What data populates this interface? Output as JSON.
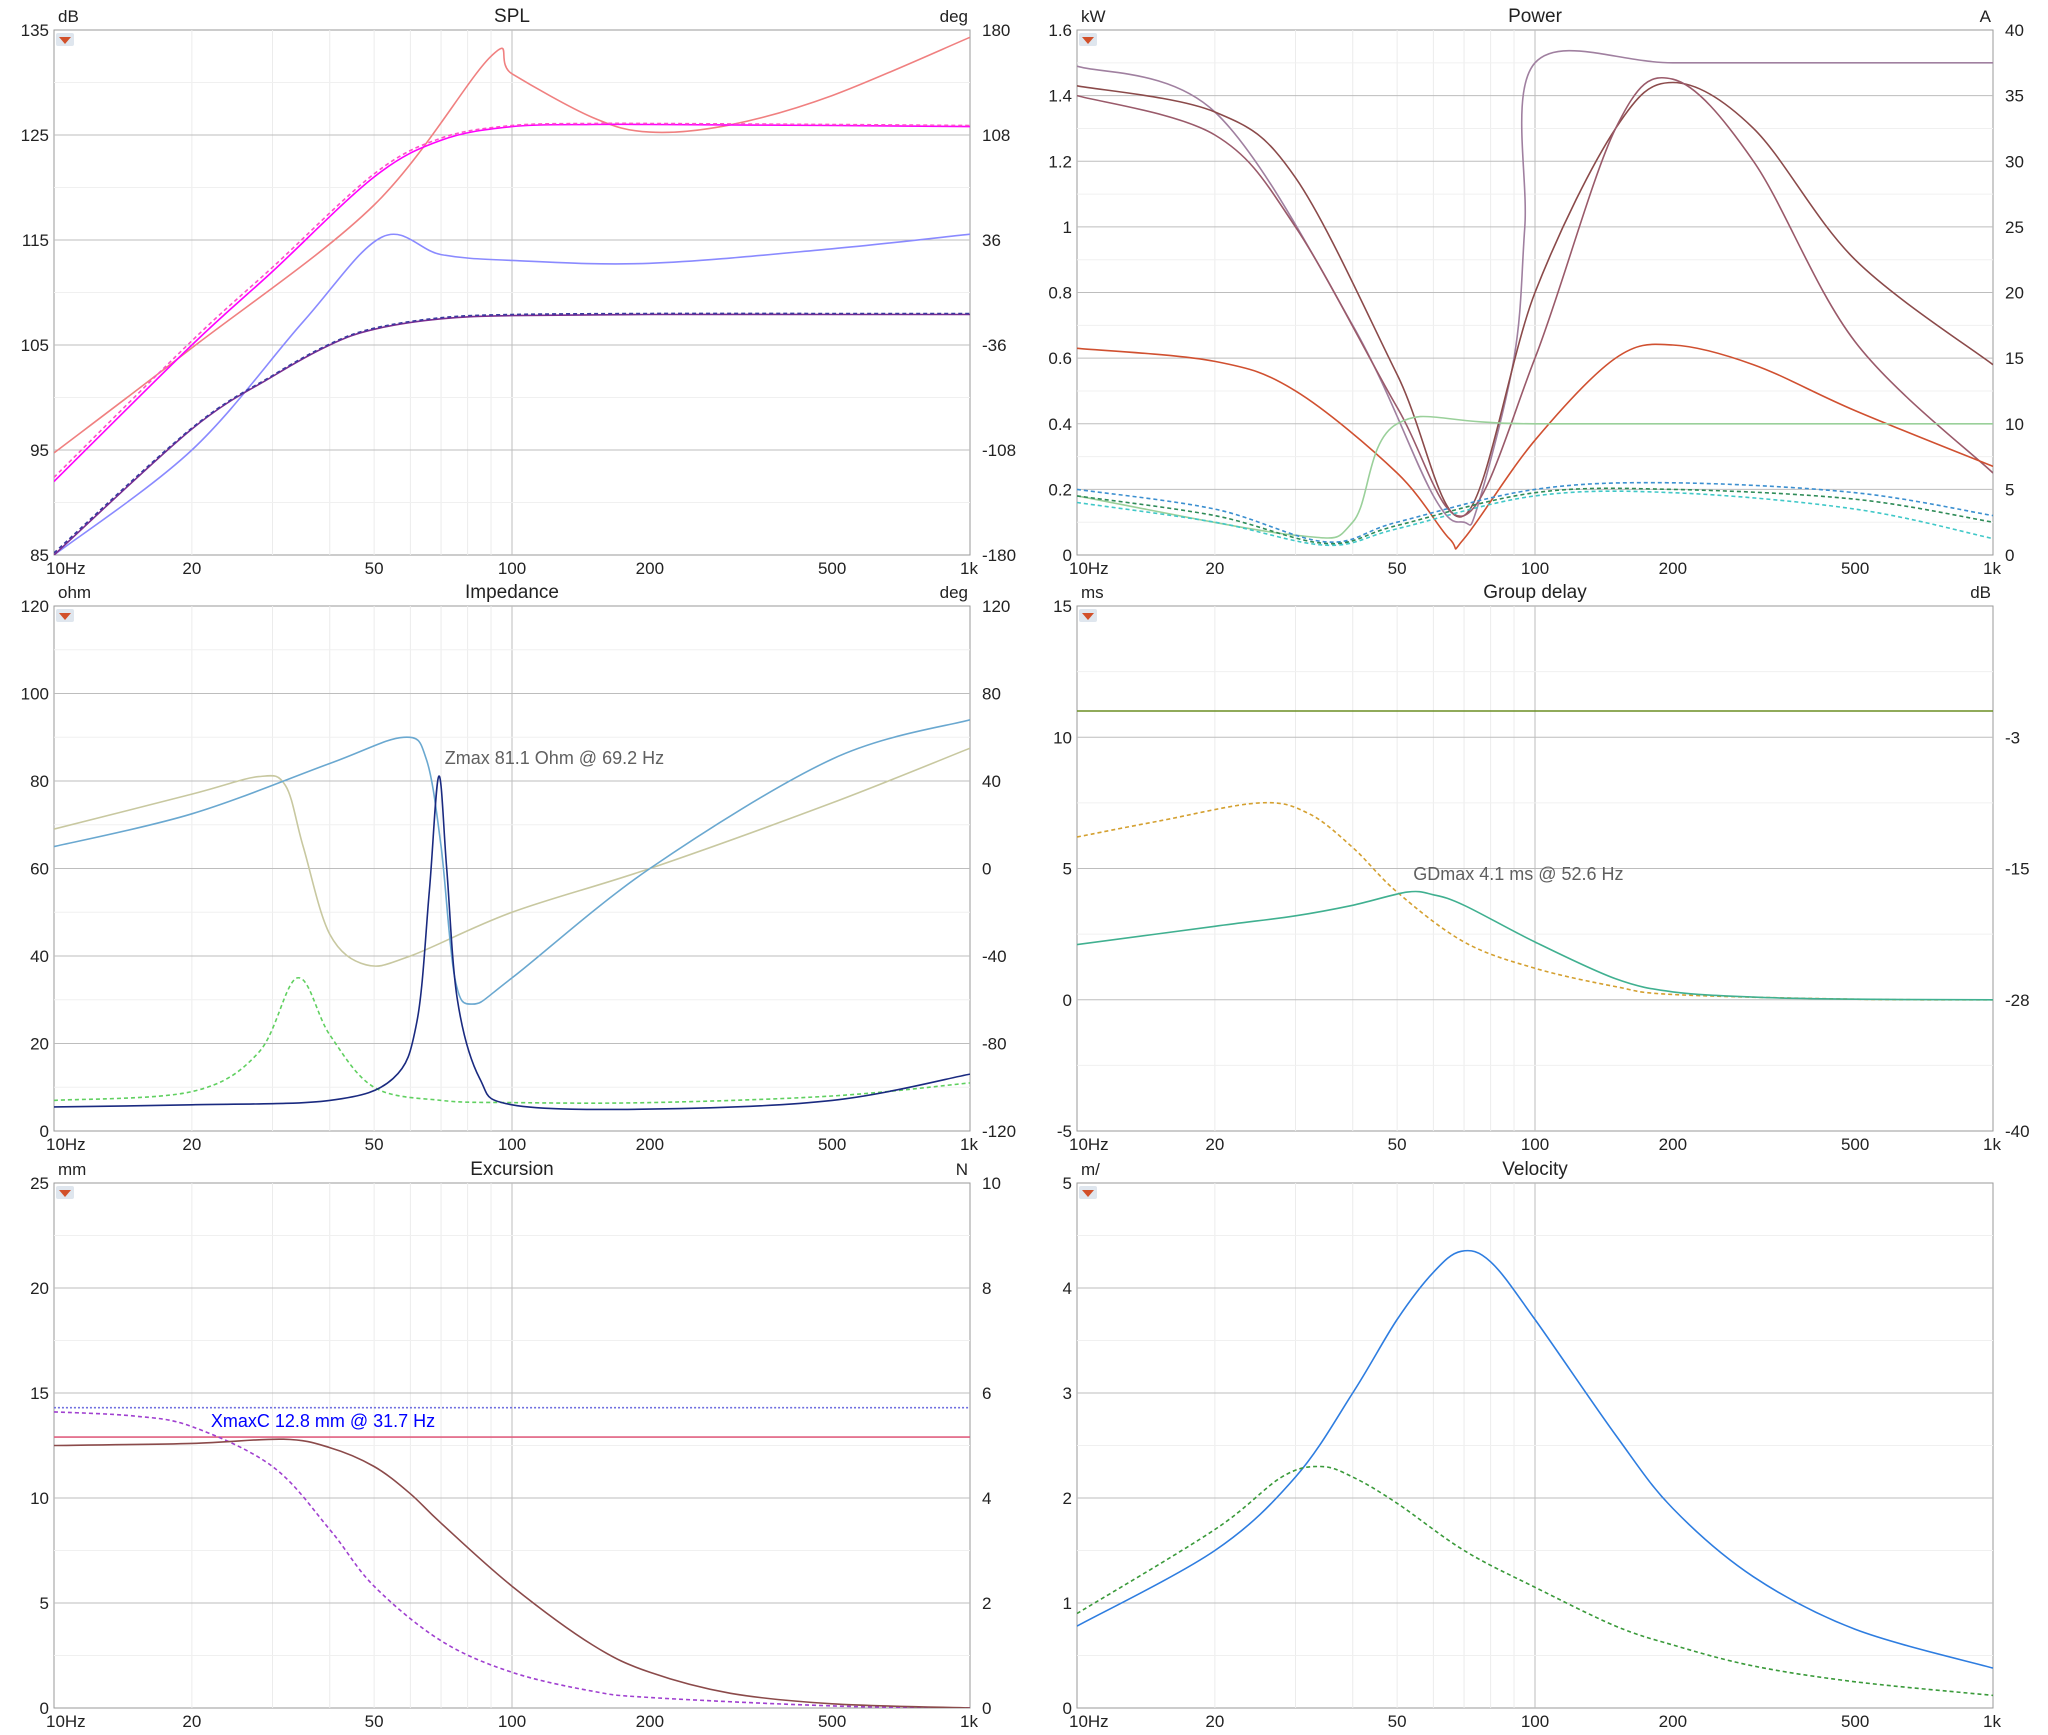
{
  "chart_data": [
    {
      "type": "line",
      "title": "SPL",
      "yunit_left": "dB",
      "yunit_right": "deg",
      "x_scale": "log",
      "xlim": [
        10,
        1000
      ],
      "xticks": [
        "10Hz",
        "20",
        "50",
        "100",
        "200",
        "500",
        "1k"
      ],
      "ylim_left": [
        85,
        135
      ],
      "yticks_left": [
        "135",
        "125",
        "115",
        "105",
        "95",
        "85"
      ],
      "ylim_right": [
        -180,
        180
      ],
      "yticks_right": [
        "180",
        "108",
        "36",
        "-36",
        "-108",
        "-180"
      ],
      "grid": true,
      "annotations": [],
      "series": [
        {
          "color": "#f08080",
          "dash": "",
          "axis": "right",
          "x": [
            10,
            20,
            50,
            90,
            100,
            150,
            200,
            300,
            500,
            1000
          ],
          "y": [
            -110,
            -38,
            60,
            162,
            150,
            120,
            110,
            115,
            135,
            175
          ]
        },
        {
          "color": "#ff00ff",
          "dash": "",
          "axis": "left",
          "x": [
            10,
            20,
            30,
            50,
            70,
            100,
            150,
            200,
            500,
            1000
          ],
          "y": [
            92,
            105,
            112,
            121,
            124.5,
            125.8,
            126,
            126,
            125.9,
            125.8
          ]
        },
        {
          "color": "#ff4fc8",
          "dash": "4,3",
          "axis": "left",
          "x": [
            10,
            20,
            30,
            50,
            70,
            100,
            150,
            200,
            500,
            1000
          ],
          "y": [
            92.4,
            105.4,
            112.4,
            121.3,
            124.7,
            125.9,
            126.1,
            126.1,
            126,
            125.9
          ]
        },
        {
          "color": "#8a8aff",
          "dash": "",
          "axis": "right",
          "x": [
            10,
            20,
            35,
            52,
            70,
            100,
            200,
            500,
            1000
          ],
          "y": [
            -180,
            -108,
            -20,
            38,
            26,
            22,
            20,
            30,
            40
          ]
        },
        {
          "color": "#7a2c90",
          "dash": "",
          "axis": "left",
          "x": [
            10,
            20,
            30,
            40,
            50,
            70,
            100,
            200,
            500,
            1000
          ],
          "y": [
            85,
            97,
            102,
            105,
            106.5,
            107.5,
            107.8,
            107.9,
            107.9,
            107.9
          ]
        },
        {
          "color": "#3a3aa0",
          "dash": "4,3",
          "axis": "left",
          "x": [
            10,
            20,
            30,
            40,
            50,
            70,
            100,
            200,
            500,
            1000
          ],
          "y": [
            85.2,
            97.1,
            102.1,
            105.1,
            106.6,
            107.6,
            107.9,
            108,
            108,
            108
          ]
        }
      ]
    },
    {
      "type": "line",
      "title": "Power",
      "yunit_left": "kW",
      "yunit_right": "A",
      "x_scale": "log",
      "xlim": [
        10,
        1000
      ],
      "xticks": [
        "10Hz",
        "20",
        "50",
        "100",
        "200",
        "500",
        "1k"
      ],
      "ylim_left": [
        0,
        1.6
      ],
      "yticks_left": [
        "1.6",
        "1.4",
        "1.2",
        "1",
        "0.8",
        "0.6",
        "0.4",
        "0.2",
        "0"
      ],
      "ylim_right": [
        0,
        40
      ],
      "yticks_right": [
        "40",
        "35",
        "30",
        "25",
        "20",
        "15",
        "10",
        "5",
        "0"
      ],
      "grid": true,
      "annotations": [],
      "series": [
        {
          "color": "#a080a0",
          "dash": "",
          "axis": "left",
          "x": [
            10,
            20,
            40,
            60,
            70,
            75,
            90,
            95,
            100,
            200,
            500,
            1000
          ],
          "y": [
            1.49,
            1.35,
            0.7,
            0.18,
            0.1,
            0.15,
            0.6,
            1.0,
            1.5,
            1.5,
            1.5,
            1.5
          ]
        },
        {
          "color": "#8b4a4a",
          "dash": "",
          "axis": "left",
          "x": [
            10,
            20,
            30,
            50,
            70,
            100,
            150,
            200,
            300,
            500,
            1000
          ],
          "y": [
            1.43,
            1.35,
            1.15,
            0.55,
            0.12,
            0.8,
            1.3,
            1.44,
            1.3,
            0.9,
            0.58
          ]
        },
        {
          "color": "#9a5a6a",
          "dash": "",
          "axis": "left",
          "x": [
            10,
            20,
            30,
            50,
            70,
            100,
            150,
            200,
            300,
            500,
            1000
          ],
          "y": [
            1.4,
            1.28,
            1.0,
            0.45,
            0.12,
            0.6,
            1.3,
            1.45,
            1.2,
            0.65,
            0.25
          ]
        },
        {
          "color": "#d05030",
          "dash": "",
          "axis": "left",
          "x": [
            10,
            20,
            30,
            50,
            65,
            70,
            100,
            150,
            200,
            300,
            500,
            1000
          ],
          "y": [
            0.63,
            0.59,
            0.5,
            0.25,
            0.05,
            0.05,
            0.35,
            0.6,
            0.64,
            0.58,
            0.44,
            0.27
          ]
        },
        {
          "color": "#9ad09a",
          "dash": "",
          "axis": "right",
          "x": [
            10,
            30,
            40,
            50,
            100,
            1000
          ],
          "y": [
            4.5,
            1.5,
            2.5,
            10,
            10,
            10
          ]
        },
        {
          "color": "#3b8fd0",
          "dash": "4,3",
          "axis": "left",
          "x": [
            10,
            20,
            35,
            50,
            100,
            200,
            500,
            1000
          ],
          "y": [
            0.2,
            0.14,
            0.04,
            0.1,
            0.2,
            0.22,
            0.19,
            0.12
          ]
        },
        {
          "color": "#2e8b57",
          "dash": "4,3",
          "axis": "left",
          "x": [
            10,
            20,
            35,
            50,
            100,
            200,
            500,
            1000
          ],
          "y": [
            0.18,
            0.12,
            0.035,
            0.09,
            0.19,
            0.2,
            0.17,
            0.1
          ]
        },
        {
          "color": "#40c8c8",
          "dash": "4,3",
          "axis": "left",
          "x": [
            10,
            20,
            35,
            50,
            100,
            200,
            500,
            1000
          ],
          "y": [
            0.16,
            0.1,
            0.03,
            0.08,
            0.18,
            0.19,
            0.14,
            0.05
          ]
        }
      ]
    },
    {
      "type": "line",
      "title": "Impedance",
      "yunit_left": "ohm",
      "yunit_right": "deg",
      "x_scale": "log",
      "xlim": [
        10,
        1000
      ],
      "xticks": [
        "10Hz",
        "20",
        "50",
        "100",
        "200",
        "500",
        "1k"
      ],
      "ylim_left": [
        0,
        120
      ],
      "yticks_left": [
        "120",
        "100",
        "80",
        "60",
        "40",
        "20",
        "0"
      ],
      "ylim_right": [
        -120,
        120
      ],
      "yticks_right": [
        "120",
        "80",
        "40",
        "0",
        "-40",
        "-80",
        "-120"
      ],
      "grid": true,
      "annotations": [
        {
          "text": "Zmax 81.1 Ohm @ 69.2 Hz",
          "x": 69.2,
          "y": 81.1,
          "color": "#606060"
        }
      ],
      "series": [
        {
          "color": "#c8c8a0",
          "dash": "",
          "axis": "right",
          "x": [
            10,
            20,
            28,
            32,
            35,
            40,
            48,
            60,
            100,
            200,
            500,
            1000
          ],
          "y": [
            18,
            34,
            42,
            38,
            10,
            -30,
            -44,
            -40,
            -20,
            0,
            30,
            55
          ]
        },
        {
          "color": "#6aa8d0",
          "dash": "",
          "axis": "right",
          "x": [
            10,
            20,
            40,
            58,
            65,
            70,
            75,
            82,
            100,
            200,
            500,
            1000
          ],
          "y": [
            10,
            25,
            48,
            60,
            50,
            10,
            -50,
            -62,
            -50,
            0,
            50,
            68
          ]
        },
        {
          "color": "#60d060",
          "dash": "4,3",
          "axis": "left",
          "x": [
            10,
            20,
            28,
            34,
            40,
            50,
            70,
            100,
            200,
            500,
            1000
          ],
          "y": [
            7,
            9,
            18,
            35,
            22,
            10,
            7,
            6.5,
            6.5,
            8,
            11
          ]
        },
        {
          "color": "#1a2a80",
          "dash": "",
          "axis": "left",
          "x": [
            10,
            20,
            40,
            55,
            62,
            66,
            69.2,
            72,
            76,
            85,
            100,
            200,
            500,
            1000
          ],
          "y": [
            5.5,
            6,
            7,
            12,
            25,
            55,
            81.1,
            60,
            30,
            12,
            6,
            5,
            7,
            13
          ]
        }
      ]
    },
    {
      "type": "line",
      "title": "Group delay",
      "yunit_left": "ms",
      "yunit_right": "dB",
      "x_scale": "log",
      "xlim": [
        10,
        1000
      ],
      "xticks": [
        "10Hz",
        "20",
        "50",
        "100",
        "200",
        "500",
        "1k"
      ],
      "ylim_left": [
        -5,
        15
      ],
      "yticks_left": [
        "15",
        "10",
        "5",
        "0",
        "-5"
      ],
      "ylim_right": [
        -40,
        10
      ],
      "yticks_right": [
        "-3",
        "-15",
        "-28",
        "-40"
      ],
      "grid": true,
      "annotations": [
        {
          "text": "GDmax 4.1 ms  @ 52.6 Hz",
          "x": 52.6,
          "y": 4.1,
          "color": "#606060"
        }
      ],
      "series": [
        {
          "color": "#6b8e23",
          "dash": "",
          "axis": "left",
          "x": [
            10,
            1000
          ],
          "y": [
            11,
            11
          ]
        },
        {
          "color": "#d4a030",
          "dash": "4,3",
          "axis": "left",
          "x": [
            10,
            15,
            25,
            32,
            40,
            50,
            70,
            100,
            150,
            200,
            500,
            1000
          ],
          "y": [
            6.2,
            6.8,
            7.5,
            7.1,
            5.8,
            4.1,
            2.2,
            1.2,
            0.5,
            0.2,
            0.02,
            0
          ]
        },
        {
          "color": "#40b090",
          "dash": "",
          "axis": "left",
          "x": [
            10,
            20,
            30,
            40,
            52.6,
            60,
            70,
            100,
            150,
            200,
            300,
            500,
            1000
          ],
          "y": [
            2.1,
            2.8,
            3.2,
            3.6,
            4.1,
            4.0,
            3.6,
            2.2,
            0.8,
            0.3,
            0.1,
            0.02,
            0
          ]
        }
      ]
    },
    {
      "type": "line",
      "title": "Excursion",
      "yunit_left": "mm",
      "yunit_right": "N",
      "x_scale": "log",
      "xlim": [
        10,
        1000
      ],
      "xticks": [
        "10Hz",
        "20",
        "50",
        "100",
        "200",
        "500",
        "1k"
      ],
      "ylim_left": [
        0,
        25
      ],
      "yticks_left": [
        "25",
        "20",
        "15",
        "10",
        "5",
        "0"
      ],
      "ylim_right": [
        0,
        10
      ],
      "yticks_right": [
        "10",
        "8",
        "6",
        "4",
        "2",
        "0"
      ],
      "grid": true,
      "annotations": [
        {
          "text": "XmaxC 12.8 mm  @ 31.7 Hz",
          "x": 22,
          "y": 12.8,
          "color": "#0000ff"
        }
      ],
      "series": [
        {
          "color": "#7070e0",
          "dash": "2,2",
          "axis": "left",
          "x": [
            10,
            1000
          ],
          "y": [
            14.3,
            14.3
          ]
        },
        {
          "color": "#e06080",
          "dash": "",
          "axis": "left",
          "x": [
            10,
            1000
          ],
          "y": [
            12.9,
            12.9
          ]
        },
        {
          "color": "#a040d0",
          "dash": "4,3",
          "axis": "left",
          "x": [
            10,
            15,
            20,
            30,
            40,
            50,
            70,
            100,
            150,
            200,
            500,
            1000
          ],
          "y": [
            14.1,
            13.9,
            13.4,
            11.5,
            8.5,
            5.8,
            3.2,
            1.7,
            0.8,
            0.5,
            0.1,
            0
          ]
        },
        {
          "color": "#8b4a4a",
          "dash": "",
          "axis": "left",
          "x": [
            10,
            20,
            31.7,
            40,
            50,
            60,
            70,
            100,
            150,
            200,
            300,
            500,
            1000
          ],
          "y": [
            12.5,
            12.6,
            12.8,
            12.4,
            11.5,
            10.2,
            8.8,
            5.8,
            3.0,
            1.7,
            0.7,
            0.2,
            0
          ]
        }
      ]
    },
    {
      "type": "line",
      "title": "Velocity",
      "yunit_left": "m/",
      "yunit_right": "",
      "x_scale": "log",
      "xlim": [
        10,
        1000
      ],
      "xticks": [
        "10Hz",
        "20",
        "50",
        "100",
        "200",
        "500",
        "1k"
      ],
      "ylim_left": [
        0,
        5
      ],
      "yticks_left": [
        "5",
        "4",
        "3",
        "2",
        "1",
        "0"
      ],
      "ylim_right": null,
      "yticks_right": [],
      "grid": true,
      "annotations": [],
      "series": [
        {
          "color": "#2e7de0",
          "dash": "",
          "axis": "left",
          "x": [
            10,
            20,
            30,
            40,
            50,
            60,
            69,
            80,
            100,
            150,
            200,
            300,
            500,
            1000
          ],
          "y": [
            0.78,
            1.5,
            2.2,
            3.0,
            3.7,
            4.15,
            4.35,
            4.25,
            3.7,
            2.6,
            1.9,
            1.25,
            0.75,
            0.38
          ]
        },
        {
          "color": "#3a9a3a",
          "dash": "4,3",
          "axis": "left",
          "x": [
            10,
            20,
            28,
            34,
            40,
            50,
            70,
            100,
            150,
            200,
            300,
            500,
            1000
          ],
          "y": [
            0.9,
            1.7,
            2.2,
            2.3,
            2.2,
            1.95,
            1.5,
            1.15,
            0.78,
            0.6,
            0.4,
            0.25,
            0.12
          ]
        }
      ]
    }
  ]
}
